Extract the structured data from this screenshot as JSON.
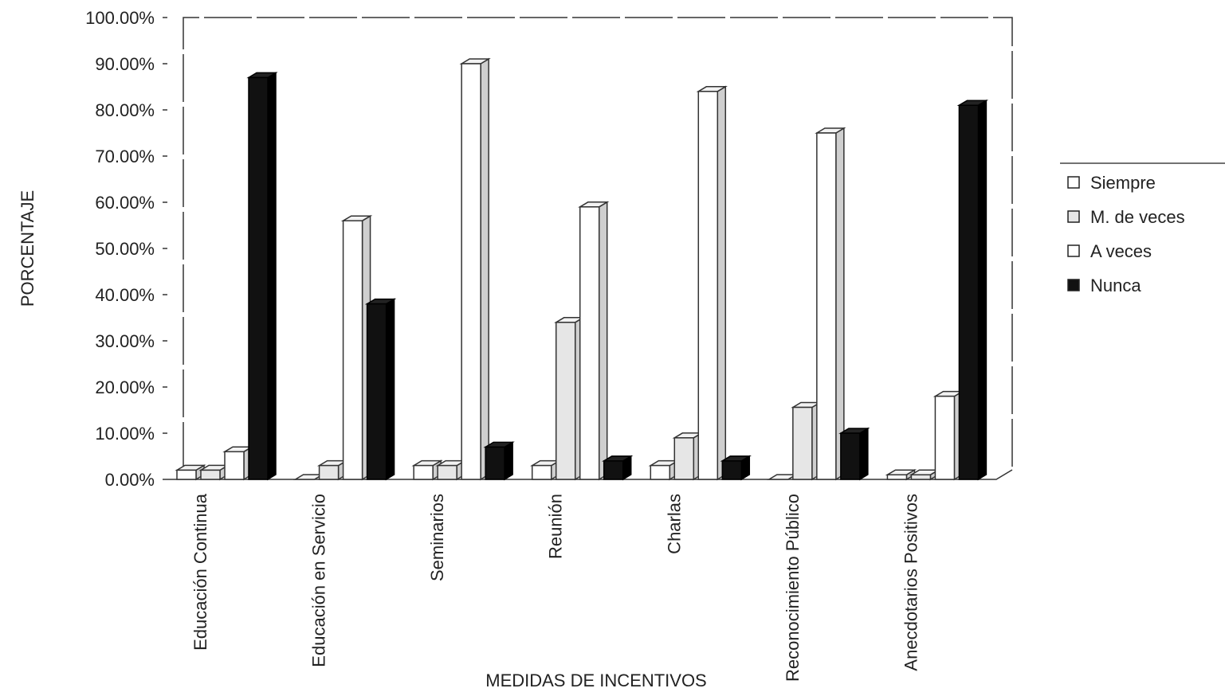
{
  "chart_data": {
    "type": "bar3d",
    "x_label": "MEDIDAS DE INCENTIVOS",
    "y_label": "PORCENTAJE",
    "categories": [
      "Educación Continua",
      "Educación en Servicio",
      "Seminarios",
      "Reunión",
      "Charlas",
      "Reconocimiento Público",
      "Anecdotarios Positivos"
    ],
    "series": [
      {
        "name": "Siempre",
        "color": "#ffffff",
        "values": [
          2,
          0,
          3,
          3,
          3,
          0,
          1
        ]
      },
      {
        "name": "M. de veces",
        "color": "#e6e6e6",
        "values": [
          2,
          3,
          3,
          34,
          9,
          15.6,
          1
        ]
      },
      {
        "name": "A veces",
        "color": "#ffffff",
        "values": [
          6,
          56,
          90,
          59,
          84,
          75,
          18
        ]
      },
      {
        "name": "Nunca",
        "color": "#111111",
        "values": [
          87,
          38,
          7,
          4,
          4,
          10,
          81
        ]
      }
    ],
    "ylim": [
      0,
      100
    ],
    "yticks": [
      {
        "value": 0,
        "label": "0.00%"
      },
      {
        "value": 10,
        "label": "10.00%"
      },
      {
        "value": 20,
        "label": "20.00%"
      },
      {
        "value": 30,
        "label": "30.00%"
      },
      {
        "value": 40,
        "label": "40.00%"
      },
      {
        "value": 50,
        "label": "50.00%"
      },
      {
        "value": 60,
        "label": "60.00%"
      },
      {
        "value": 70,
        "label": "70.00%"
      },
      {
        "value": 80,
        "label": "80.00%"
      },
      {
        "value": 90,
        "label": "90.00%"
      },
      {
        "value": 100,
        "label": "100.00%"
      }
    ]
  }
}
